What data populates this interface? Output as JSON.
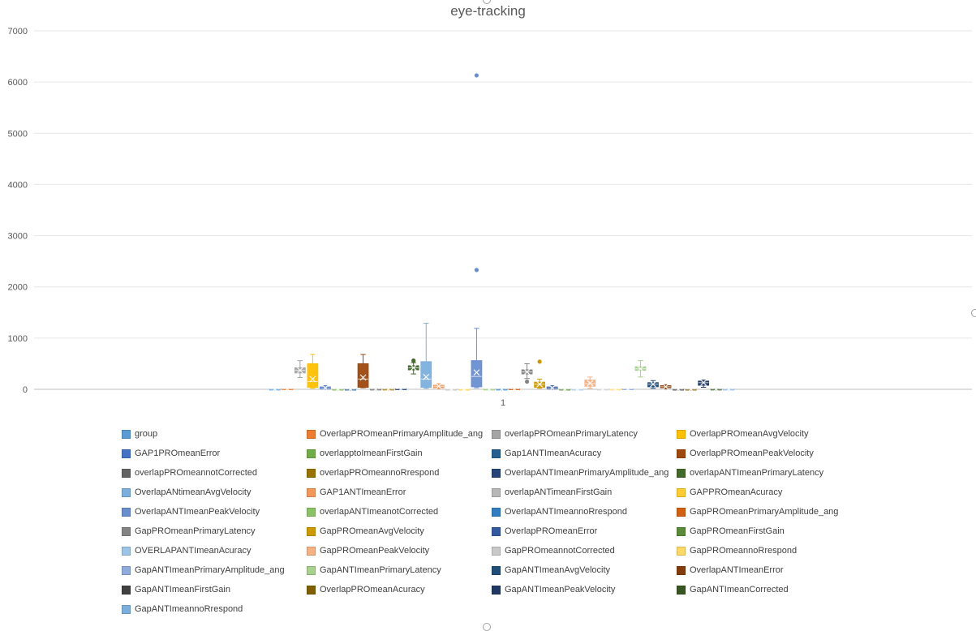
{
  "chart_data": {
    "type": "boxplot",
    "title": "eye-tracking",
    "xlabel": "",
    "ylabel": "",
    "ylim": [
      0,
      7000
    ],
    "yticks": [
      0,
      1000,
      2000,
      3000,
      4000,
      5000,
      6000,
      7000
    ],
    "categories": [
      "1"
    ],
    "grid": true,
    "legend_position": "bottom",
    "series": [
      {
        "name": "group",
        "color": "#5B9BD5",
        "box": [
          1,
          1.5,
          2,
          2.5,
          3
        ],
        "mean": 2
      },
      {
        "name": "OverlapPROmeanPrimaryAmplitude_ang",
        "color": "#ED7D31",
        "box": [
          2,
          4,
          6,
          8,
          10
        ],
        "mean": 6
      },
      {
        "name": "overlapPROmeanPrimaryLatency",
        "color": "#A5A5A5",
        "box": [
          230,
          320,
          370,
          420,
          560
        ],
        "mean": 370
      },
      {
        "name": "OverlapPROmeanAvgVelocity",
        "color": "#FFC000",
        "box": [
          20,
          40,
          150,
          500,
          680
        ],
        "mean": 200
      },
      {
        "name": "GAP1PROmeanError",
        "color": "#4472C4",
        "box": [
          0,
          10,
          25,
          45,
          70
        ],
        "mean": 25
      },
      {
        "name": "overlapptoImeanFirstGain",
        "color": "#70AD47",
        "box": [
          0.5,
          0.8,
          1,
          1.1,
          1.3
        ],
        "mean": 1
      },
      {
        "name": "Gap1ANTImeanAcuracy",
        "color": "#255E91",
        "box": [
          0.2,
          0.5,
          0.7,
          0.9,
          1
        ],
        "mean": 0.7
      },
      {
        "name": "OverlapPROmeanPeakVelocity",
        "color": "#9E480E",
        "box": [
          30,
          40,
          200,
          500,
          680
        ],
        "mean": 230
      },
      {
        "name": "overlapPROmeannotCorrected",
        "color": "#636363",
        "box": [
          0,
          1,
          2,
          3,
          5
        ],
        "mean": 2
      },
      {
        "name": "overlapPROmeannoRrespond",
        "color": "#997300",
        "box": [
          0,
          1,
          2,
          3,
          5
        ],
        "mean": 2
      },
      {
        "name": "OverlapANTImeanPrimaryAmplitude_ang",
        "color": "#264478",
        "box": [
          2,
          4,
          6,
          8,
          10
        ],
        "mean": 6
      },
      {
        "name": "overlapANTImeanPrimaryLatency",
        "color": "#43682B",
        "box": [
          300,
          380,
          420,
          460,
          520
        ],
        "mean": 420,
        "outliers": [
          560
        ]
      },
      {
        "name": "OverlapANtimeanAvgVelocity",
        "color": "#7CAFDD",
        "box": [
          20,
          40,
          200,
          540,
          1290
        ],
        "mean": 240
      },
      {
        "name": "GAP1ANTImeanError",
        "color": "#F1975A",
        "box": [
          10,
          30,
          60,
          80,
          110
        ],
        "mean": 60
      },
      {
        "name": "overlapANTimeanFirstGain",
        "color": "#B7B7B7",
        "box": [
          0.5,
          0.8,
          1,
          1.1,
          1.3
        ],
        "mean": 1
      },
      {
        "name": "GAPPROmeanAcuracy",
        "color": "#FFCD33",
        "box": [
          0.2,
          0.5,
          0.7,
          0.9,
          1
        ],
        "mean": 0.7
      },
      {
        "name": "OverlapANTImeanPeakVelocity",
        "color": "#698ED0",
        "box": [
          30,
          50,
          250,
          560,
          1190
        ],
        "mean": 330,
        "outliers": [
          2330,
          6130
        ]
      },
      {
        "name": "overlapANTImeanotCorrected",
        "color": "#8CC168",
        "box": [
          0,
          1,
          2,
          3,
          5
        ],
        "mean": 2
      },
      {
        "name": "OverlapANTImeannoRrespond",
        "color": "#327DC2",
        "box": [
          0,
          1,
          2,
          3,
          5
        ],
        "mean": 2
      },
      {
        "name": "GapPROmeanPrimaryAmplitude_ang",
        "color": "#D26012",
        "box": [
          2,
          4,
          6,
          8,
          10
        ],
        "mean": 6
      },
      {
        "name": "GapPROmeanPrimaryLatency",
        "color": "#848484",
        "box": [
          210,
          300,
          340,
          380,
          500
        ],
        "mean": 340,
        "outliers": [
          150
        ]
      },
      {
        "name": "GapPROmeanAvgVelocity",
        "color": "#CC9A00",
        "box": [
          20,
          40,
          100,
          140,
          200
        ],
        "mean": 100,
        "outliers": [
          540
        ]
      },
      {
        "name": "OverlapPROmeanError",
        "color": "#335AA1",
        "box": [
          0,
          10,
          25,
          45,
          70
        ],
        "mean": 25
      },
      {
        "name": "GapPROmeanFirstGain",
        "color": "#5A8A38",
        "box": [
          0.5,
          0.8,
          1,
          1.1,
          1.3
        ],
        "mean": 1
      },
      {
        "name": "OVERLAPANTImeanAcuracy",
        "color": "#9DC3E6",
        "box": [
          0.2,
          0.5,
          0.7,
          0.9,
          1
        ],
        "mean": 0.7
      },
      {
        "name": "GapPROmeanPeakVelocity",
        "color": "#F4B183",
        "box": [
          20,
          60,
          110,
          180,
          240
        ],
        "mean": 120
      },
      {
        "name": "GapPROmeannotCorrected",
        "color": "#C9C9C9",
        "box": [
          0,
          1,
          2,
          3,
          5
        ],
        "mean": 2
      },
      {
        "name": "GapPROmeannoRrespond",
        "color": "#FFD966",
        "box": [
          0,
          1,
          2,
          3,
          5
        ],
        "mean": 2
      },
      {
        "name": "GapANTImeanPrimaryAmplitude_ang",
        "color": "#8FAADC",
        "box": [
          2,
          4,
          6,
          8,
          10
        ],
        "mean": 6
      },
      {
        "name": "GapANTImeanPrimaryLatency",
        "color": "#A9D18E",
        "box": [
          240,
          370,
          400,
          440,
          560
        ],
        "mean": 400
      },
      {
        "name": "GapANTImeanAvgVelocity",
        "color": "#1F4E79",
        "box": [
          20,
          50,
          100,
          130,
          170
        ],
        "mean": 100
      },
      {
        "name": "OverlapANTImeanError",
        "color": "#843C0C",
        "box": [
          10,
          30,
          50,
          70,
          90
        ],
        "mean": 50
      },
      {
        "name": "GapANTImeanFirstGain",
        "color": "#404040",
        "box": [
          0.5,
          0.8,
          1,
          1.1,
          1.3
        ],
        "mean": 1
      },
      {
        "name": "OverlapPROmeanAcuracy",
        "color": "#7F6000",
        "box": [
          0.2,
          0.5,
          0.7,
          0.9,
          1
        ],
        "mean": 0.7
      },
      {
        "name": "GapANTImeanPeakVelocity",
        "color": "#203864",
        "box": [
          40,
          80,
          130,
          160,
          180
        ],
        "mean": 130
      },
      {
        "name": "GapANTImeanCorrected",
        "color": "#375623",
        "box": [
          0,
          1,
          2,
          3,
          5
        ],
        "mean": 2
      },
      {
        "name": "GapANTImeannoRrespond",
        "color": "#7CAFDD",
        "box": [
          0,
          1,
          2,
          3,
          5
        ],
        "mean": 2
      }
    ]
  }
}
